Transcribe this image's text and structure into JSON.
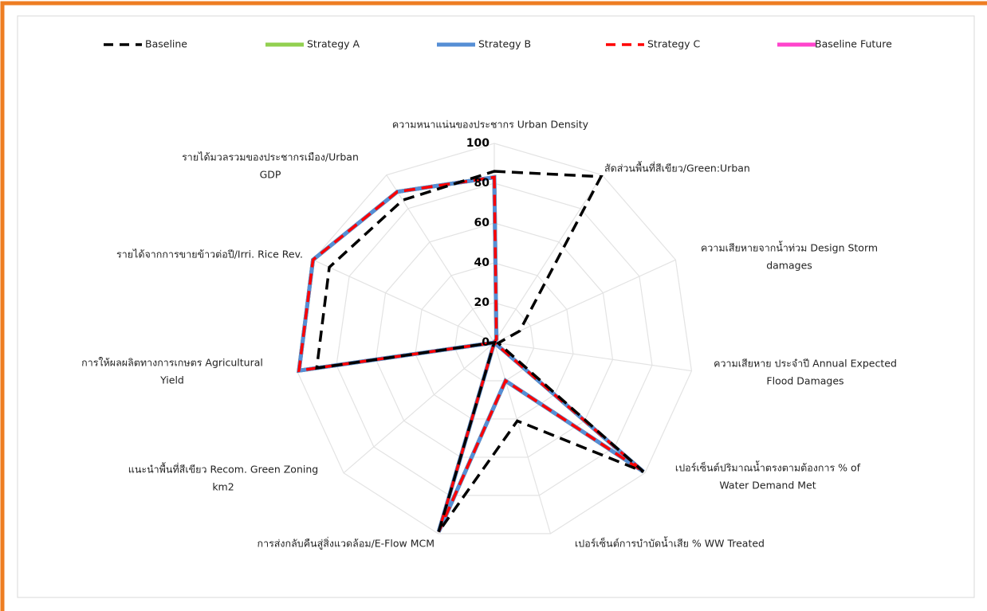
{
  "chart_data": {
    "type": "radar",
    "categories": [
      [
        "ความหนาแน่นของประชากร Urban Density"
      ],
      [
        "สัดส่วนพื้นที่สีเขียว/Green:Urban"
      ],
      [
        "ความเสียหายจากน้ำท่วม Design Storm",
        "damages"
      ],
      [
        "ความเสียหาย ประจำปี Annual Expected",
        "Flood Damages"
      ],
      [
        "เปอร์เซ็นต์ปริมาณน้ำตรงตามต้องการ % of",
        "Water Demand Met"
      ],
      [
        "เปอร์เซ็นต์การบำบัดน้ำเสีย % WW Treated"
      ],
      [
        "การส่งกลับคืนสู่สิ่งแวดล้อม/E-Flow MCM"
      ],
      [
        "แนะนำพื้นที่สีเขียว Recom. Green Zoning",
        "km2"
      ],
      [
        "การให้ผลผลิตทางการเกษตร Agricultural",
        "Yield"
      ],
      [
        "รายได้จากการขายข้าวต่อปี/Irri. Rice Rev."
      ],
      [
        "รายได้มวลรวมของประชากรเมือง/Urban",
        "GDP"
      ]
    ],
    "series": [
      {
        "name": "Baseline",
        "color": "#000000",
        "dash": true,
        "values": [
          86,
          99,
          14,
          2,
          99,
          41,
          99,
          0,
          90,
          91,
          85
        ]
      },
      {
        "name": "Strategy A",
        "color": "#92d050",
        "dash": false,
        "values": [
          83,
          2,
          0,
          0,
          99,
          20,
          99,
          0,
          99,
          100,
          90
        ]
      },
      {
        "name": "Strategy B",
        "color": "#558ed5",
        "dash": false,
        "values": [
          83,
          2,
          0,
          0,
          99,
          20,
          99,
          0,
          99,
          100,
          90
        ]
      },
      {
        "name": "Strategy C",
        "color": "#ff0000",
        "dash": true,
        "values": [
          83,
          2,
          0,
          0,
          99,
          20,
          99,
          0,
          99,
          100,
          90
        ]
      },
      {
        "name": "Baseline Future",
        "color": "#ff44cc",
        "dash": false,
        "values": [
          83,
          2,
          0,
          0,
          99,
          20,
          99,
          0,
          99,
          100,
          90
        ]
      }
    ],
    "ylim": [
      0,
      100
    ],
    "yticks": [
      0,
      20,
      40,
      60,
      80,
      100
    ],
    "grid": true,
    "legend": "top"
  }
}
